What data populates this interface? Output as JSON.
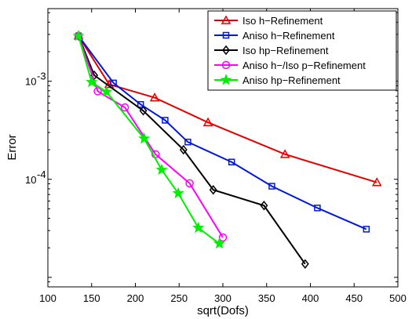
{
  "chart_data": {
    "type": "line",
    "title": "",
    "xlabel": "sqrt(Dofs)",
    "ylabel": "Error",
    "xlim": [
      100,
      500
    ],
    "ylim": [
      8e-06,
      0.0055
    ],
    "yscale": "log",
    "grid": false,
    "legend_position": "top-right",
    "x_ticks": [
      100,
      150,
      200,
      250,
      300,
      350,
      400,
      450,
      500
    ],
    "x_tick_labels": [
      "100",
      "150",
      "200",
      "250",
      "300",
      "350",
      "400",
      "450",
      "500"
    ],
    "y_ticks": [
      0.0001,
      0.001
    ],
    "y_tick_labels": [
      {
        "base": "10",
        "exp": "-4"
      },
      {
        "base": "10",
        "exp": "-3"
      }
    ],
    "series": [
      {
        "name": "Iso h−Refinement",
        "color": "#e50000",
        "marker": "triangle",
        "x": [
          135,
          170,
          222,
          283,
          371,
          476
        ],
        "y": [
          0.0029,
          0.00093,
          0.00068,
          0.00038,
          0.00018,
          9.3e-05
        ]
      },
      {
        "name": "Aniso h−Refinement",
        "color": "#0018d9",
        "marker": "square",
        "x": [
          135,
          175,
          206,
          234,
          260,
          310,
          356,
          408,
          464
        ],
        "y": [
          0.0029,
          0.00096,
          0.00058,
          0.0004,
          0.00024,
          0.00015,
          8.5e-05,
          5.1e-05,
          3.1e-05
        ]
      },
      {
        "name": "Iso hp−Refinement",
        "color": "#000000",
        "marker": "diamond",
        "x": [
          135,
          153,
          209,
          255,
          289,
          347,
          394
        ],
        "y": [
          0.0029,
          0.00115,
          0.0005,
          0.0002,
          7.8e-05,
          5.4e-05,
          1.37e-05
        ]
      },
      {
        "name": "Aniso h−/Iso p−Refinement",
        "color": "#ff00ff",
        "marker": "circle",
        "x": [
          135,
          157,
          188,
          223,
          262,
          300
        ],
        "y": [
          0.0029,
          0.00079,
          0.00054,
          0.00018,
          9.1e-05,
          2.55e-05
        ]
      },
      {
        "name": "Aniso hp−Refinement",
        "color": "#00ee00",
        "marker": "star",
        "x": [
          135,
          150,
          167,
          210,
          230,
          249,
          272,
          296
        ],
        "y": [
          0.0029,
          0.00098,
          0.00078,
          0.00026,
          0.000125,
          7.2e-05,
          3.2e-05,
          2.21e-05
        ]
      }
    ]
  }
}
